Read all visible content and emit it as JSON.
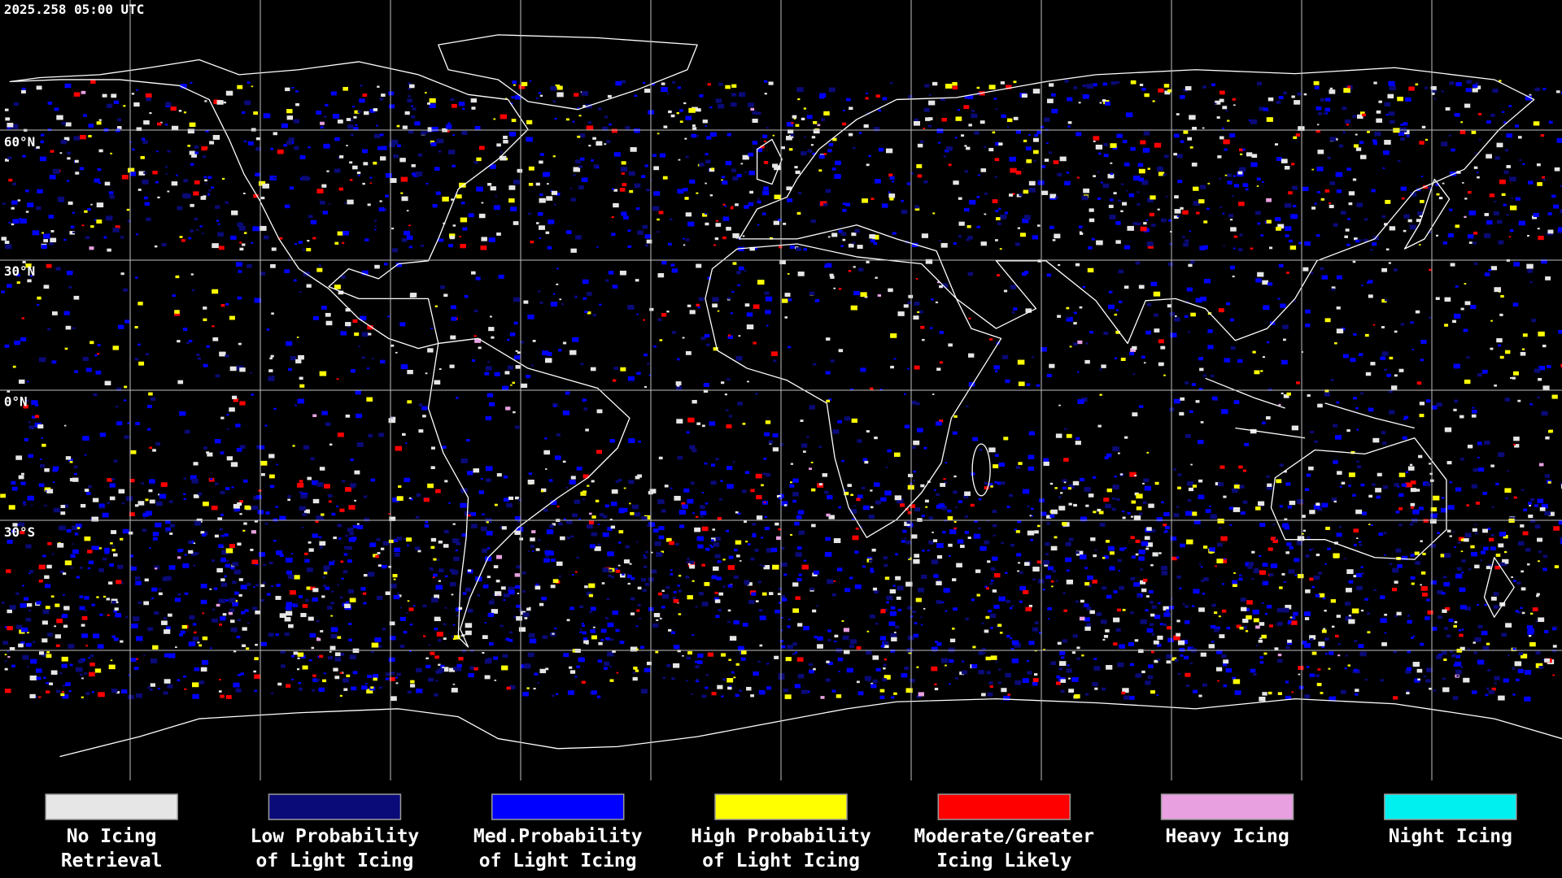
{
  "timestamp": "2025.258 05:00 UTC",
  "latitude_labels": [
    "60°N",
    "30°N",
    "0°N",
    "30°S"
  ],
  "legend": [
    {
      "color": "#e6e6e6",
      "label": [
        "No Icing",
        "Retrieval"
      ]
    },
    {
      "color": "#0a0a78",
      "label": [
        "Low Probability",
        "of Light Icing"
      ]
    },
    {
      "color": "#0000ff",
      "label": [
        "Med.Probability",
        "of Light Icing"
      ]
    },
    {
      "color": "#ffff00",
      "label": [
        "High Probability",
        "of Light Icing"
      ]
    },
    {
      "color": "#ff0000",
      "label": [
        "Moderate/Greater",
        "Icing Likely"
      ]
    },
    {
      "color": "#e8a0e0",
      "label": [
        "Heavy Icing"
      ]
    },
    {
      "color": "#00f0f0",
      "label": [
        "Night Icing"
      ]
    }
  ]
}
